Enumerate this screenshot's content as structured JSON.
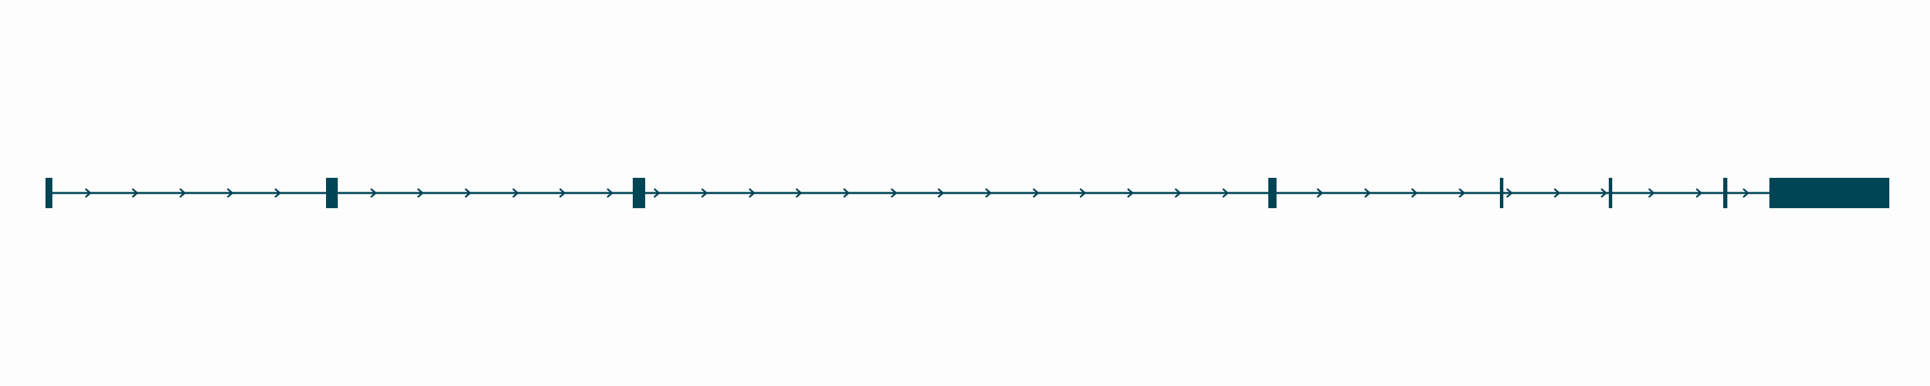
{
  "colors": {
    "background": "#fdfdfd",
    "feature": "#004555"
  },
  "gene_model": {
    "strand": "+",
    "exons": [
      {
        "id": "exon-1",
        "type": "coding"
      },
      {
        "id": "exon-2",
        "type": "coding"
      },
      {
        "id": "exon-3",
        "type": "coding"
      },
      {
        "id": "exon-4",
        "type": "coding"
      },
      {
        "id": "exon-5",
        "type": "coding"
      },
      {
        "id": "exon-6",
        "type": "coding"
      },
      {
        "id": "exon-7",
        "type": "coding"
      },
      {
        "id": "exon-8",
        "type": "coding"
      }
    ],
    "introns": [
      {
        "id": "intron-1"
      },
      {
        "id": "intron-2"
      },
      {
        "id": "intron-3"
      },
      {
        "id": "intron-4"
      },
      {
        "id": "intron-5"
      },
      {
        "id": "intron-6"
      },
      {
        "id": "intron-7"
      }
    ]
  }
}
